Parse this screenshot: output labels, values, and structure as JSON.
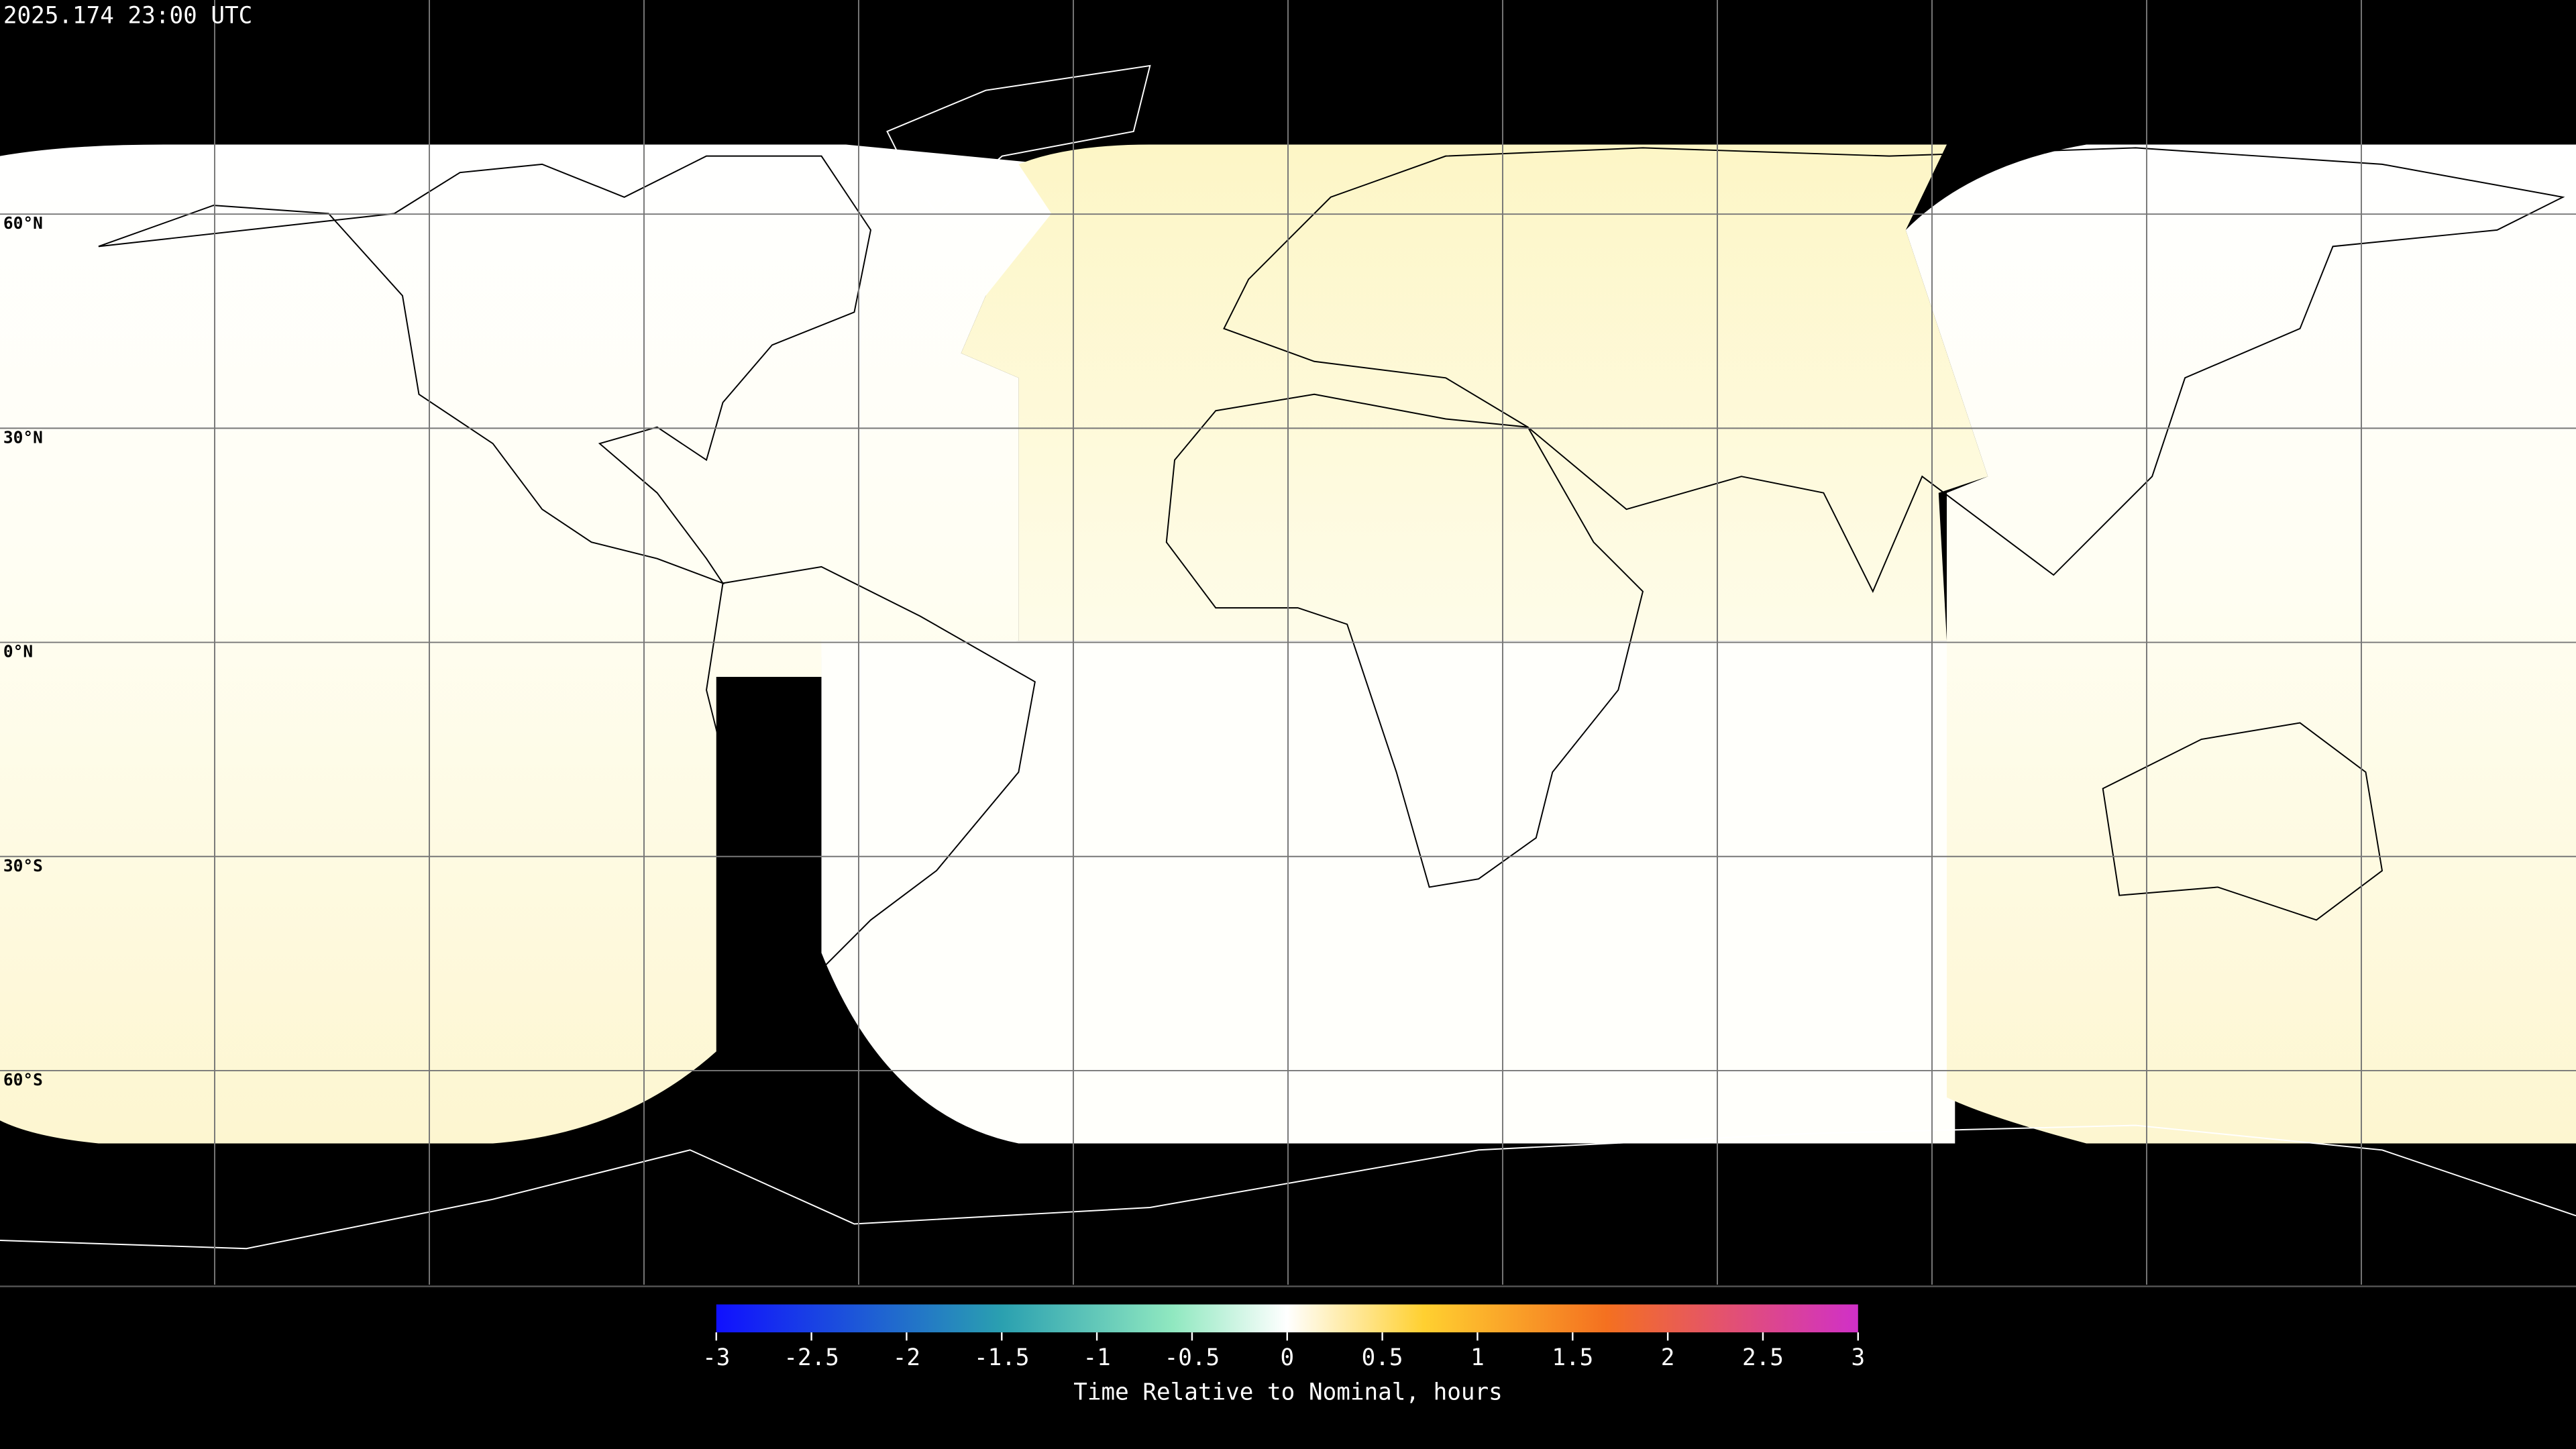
{
  "header": {
    "title": "2025.174 23:00 UTC"
  },
  "map": {
    "lat_labels": [
      "60°N",
      "30°N",
      "0°N",
      "30°S",
      "60°S"
    ]
  },
  "colorbar": {
    "label": "Time Relative to Nominal, hours",
    "range": [
      -3,
      3
    ],
    "ticks": [
      -3,
      -2.5,
      -2,
      -1.5,
      -1,
      -0.5,
      0,
      0.5,
      1,
      1.5,
      2,
      2.5,
      3
    ]
  }
}
